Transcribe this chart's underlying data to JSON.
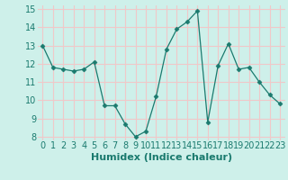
{
  "x": [
    0,
    1,
    2,
    3,
    4,
    5,
    6,
    7,
    8,
    9,
    10,
    11,
    12,
    13,
    14,
    15,
    16,
    17,
    18,
    19,
    20,
    21,
    22,
    23
  ],
  "y": [
    13.0,
    11.8,
    11.7,
    11.6,
    11.7,
    12.1,
    9.7,
    9.7,
    8.7,
    8.0,
    8.3,
    10.2,
    12.8,
    13.9,
    14.3,
    14.9,
    8.8,
    11.9,
    13.1,
    11.7,
    11.8,
    11.0,
    10.3,
    9.8
  ],
  "xlabel": "Humidex (Indice chaleur)",
  "ylim": [
    7.8,
    15.2
  ],
  "xlim": [
    -0.5,
    23.5
  ],
  "yticks": [
    8,
    9,
    10,
    11,
    12,
    13,
    14,
    15
  ],
  "xticks": [
    0,
    1,
    2,
    3,
    4,
    5,
    6,
    7,
    8,
    9,
    10,
    11,
    12,
    13,
    14,
    15,
    16,
    17,
    18,
    19,
    20,
    21,
    22,
    23
  ],
  "line_color": "#1a7a6e",
  "marker": "D",
  "marker_size": 2.5,
  "bg_color": "#cef0ea",
  "grid_color": "#f0c8c8",
  "xlabel_fontsize": 8,
  "tick_fontsize": 7
}
